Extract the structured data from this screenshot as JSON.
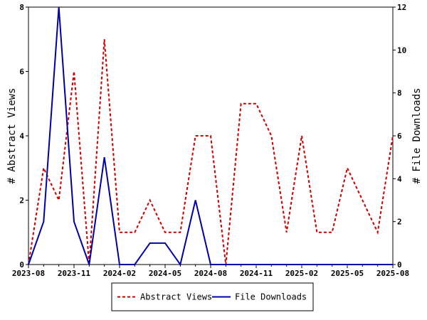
{
  "chart_data": {
    "type": "line",
    "x": [
      "2023-08",
      "2023-09",
      "2023-10",
      "2023-11",
      "2023-12",
      "2024-01",
      "2024-02",
      "2024-03",
      "2024-04",
      "2024-05",
      "2024-06",
      "2024-07",
      "2024-08",
      "2024-09",
      "2024-10",
      "2024-11",
      "2024-12",
      "2025-01",
      "2025-02",
      "2025-03",
      "2025-04",
      "2025-05",
      "2025-06",
      "2025-07",
      "2025-08"
    ],
    "x_tick_labels": [
      "2023-08",
      "2023-11",
      "2024-02",
      "2024-05",
      "2024-08",
      "2024-11",
      "2025-02",
      "2025-05",
      "2025-08"
    ],
    "series": [
      {
        "name": "Abstract Views",
        "axis": "left",
        "color": "#cc0000",
        "style": "dashed",
        "values": [
          0,
          3,
          2,
          6,
          0,
          7,
          1,
          1,
          2,
          1,
          1,
          4,
          4,
          0,
          5,
          5,
          4,
          1,
          4,
          1,
          1,
          3,
          2,
          1,
          4
        ]
      },
      {
        "name": "File Downloads",
        "axis": "right",
        "color": "#0000aa",
        "style": "solid",
        "values": [
          0,
          2,
          12,
          2,
          0,
          5,
          0,
          0,
          1,
          1,
          0,
          3,
          0,
          0,
          0,
          0,
          0,
          0,
          0,
          0,
          0,
          0,
          0,
          0,
          0
        ]
      }
    ],
    "ylabel": "# Abstract Views",
    "ylabel_right": "# File Downloads",
    "ylim": [
      0,
      8
    ],
    "ylim_right": [
      0,
      12
    ],
    "y_ticks": [
      "0",
      "2",
      "4",
      "6",
      "8"
    ],
    "y_ticks_right": [
      "0",
      "2",
      "4",
      "6",
      "8",
      "10",
      "12"
    ],
    "grid": false,
    "legend_position": "bottom"
  }
}
